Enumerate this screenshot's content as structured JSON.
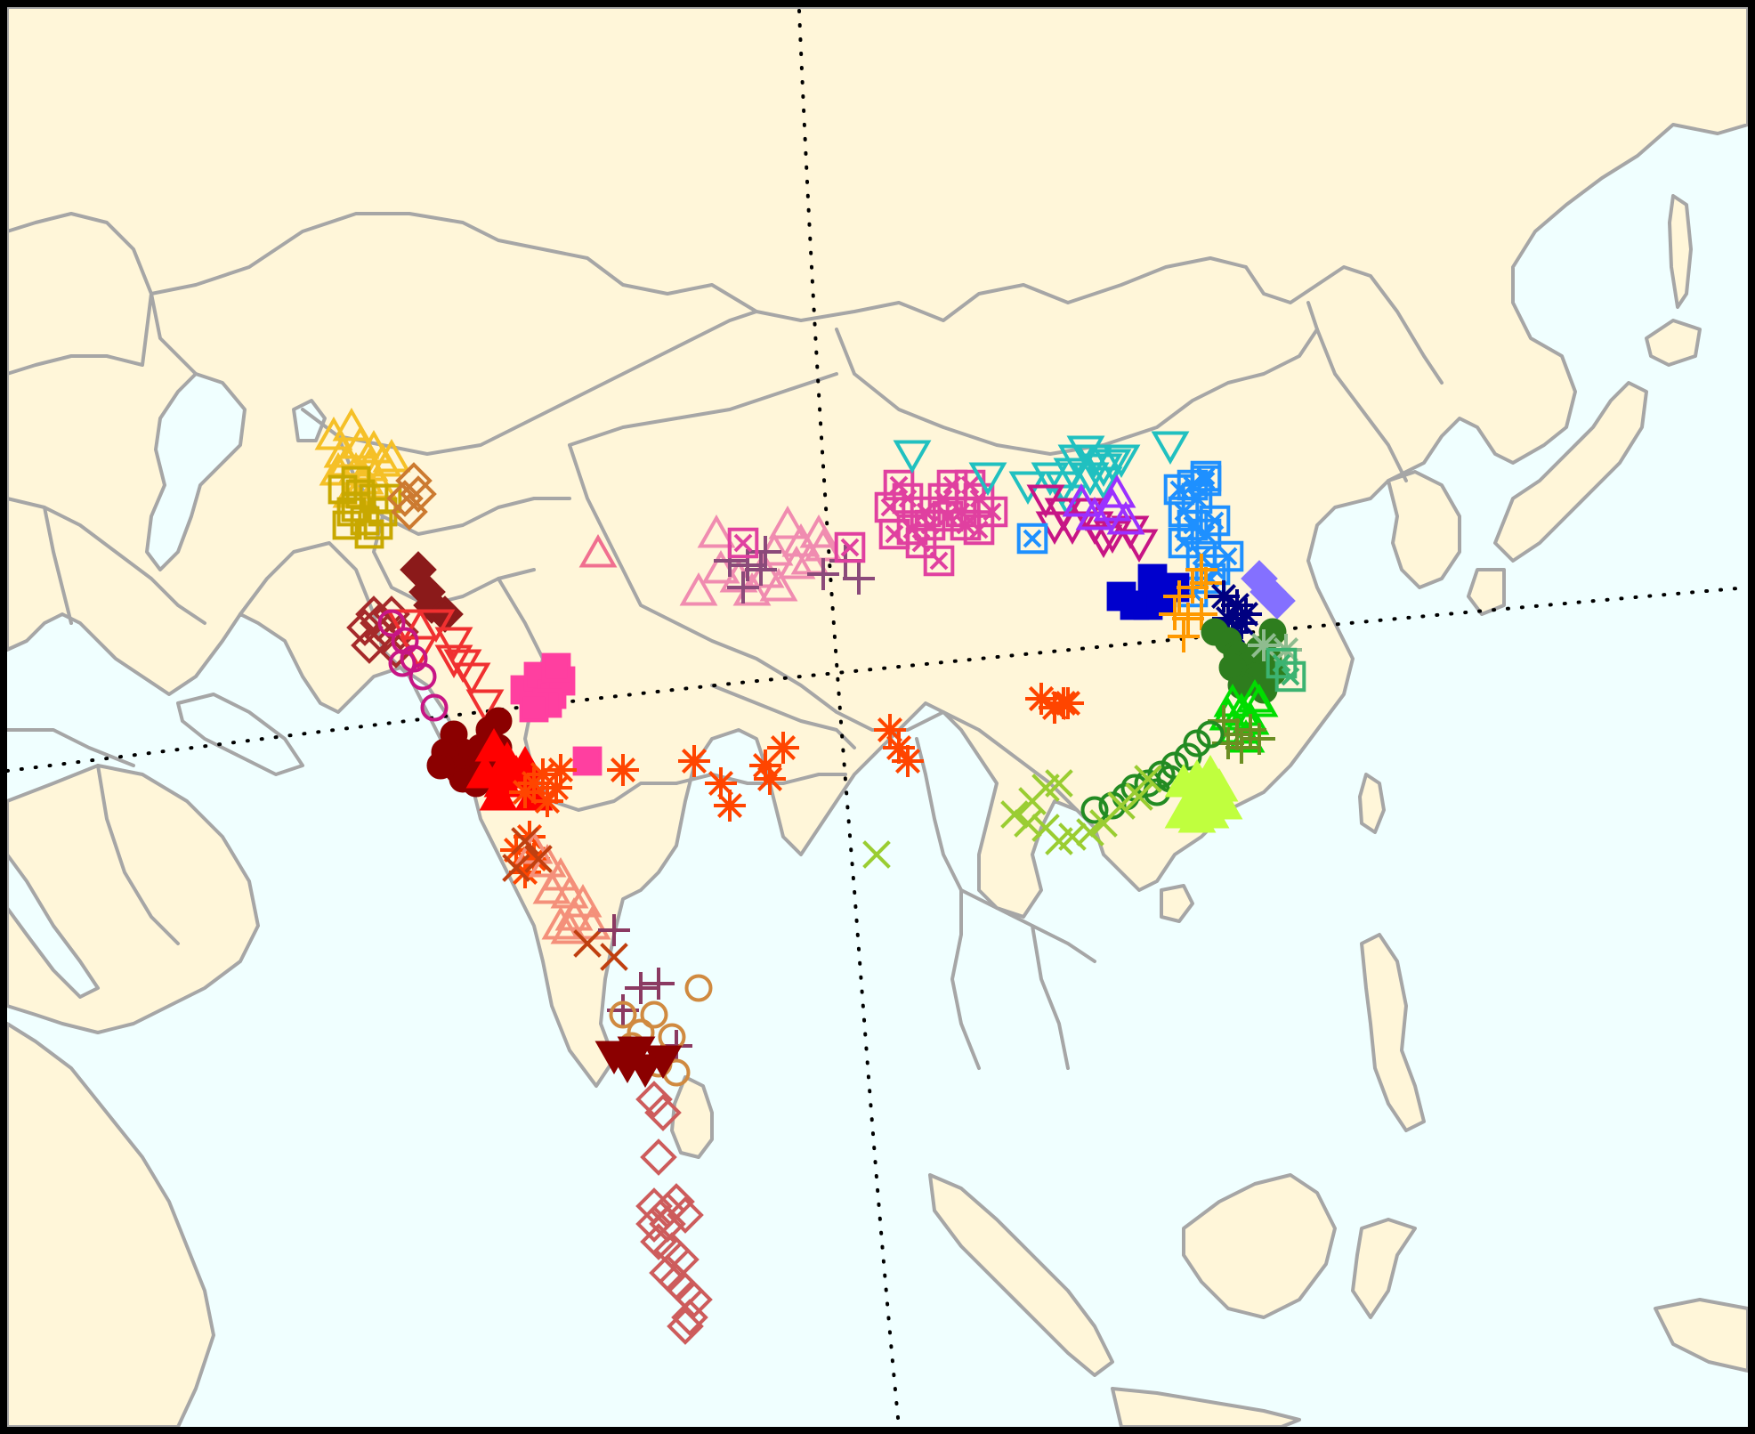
{
  "map": {
    "colors": {
      "land": "#fff6d9",
      "sea": "#f0ffff",
      "border": "#a6a6a6",
      "frame": "#000000",
      "grid": "#000000"
    },
    "marker_groups": [
      {
        "id": "central-asia-yellow-triangles",
        "shape": "triangle-up",
        "color": "#f5c027",
        "count": 14
      },
      {
        "id": "central-asia-olive-squares",
        "shape": "square",
        "color": "#c8a800",
        "count": 12
      },
      {
        "id": "central-asia-orange-diamonds",
        "shape": "diamond",
        "color": "#cc7a30",
        "count": 4
      },
      {
        "id": "pamir-pink-triangle",
        "shape": "triangle-up",
        "color": "#f07090",
        "count": 1
      },
      {
        "id": "afghan-maroon-diamonds",
        "shape": "diamond",
        "color": "#a52a2a",
        "count": 8
      },
      {
        "id": "afghan-darkred-filled-diamonds",
        "shape": "diamond-filled",
        "color": "#8b1a1a",
        "count": 4
      },
      {
        "id": "afghan-red-down-triangles",
        "shape": "triangle-down",
        "color": "#f03030",
        "count": 8
      },
      {
        "id": "afghan-magenta-circles",
        "shape": "circle",
        "color": "#c71585",
        "count": 6
      },
      {
        "id": "indus-darkred-dots",
        "shape": "circle-filled",
        "color": "#8b0000",
        "count": 14
      },
      {
        "id": "indus-red-filled-triangles",
        "shape": "triangle-filled",
        "color": "#ff0000",
        "count": 8
      },
      {
        "id": "punjab-hotpink-squares",
        "shape": "square-filled",
        "color": "#ff3fa0",
        "count": 8
      },
      {
        "id": "north-india-orange-asterisks",
        "shape": "asterisk",
        "color": "#ff4500",
        "count": 22
      },
      {
        "id": "west-coast-salmon-triangles",
        "shape": "triangle-up",
        "color": "#f4907a",
        "count": 10
      },
      {
        "id": "west-coast-brown-crosses",
        "shape": "x-mark",
        "color": "#c04010",
        "count": 5
      },
      {
        "id": "south-india-purple-plus",
        "shape": "plus",
        "color": "#8b3a62",
        "count": 5
      },
      {
        "id": "south-india-tan-circles",
        "shape": "circle",
        "color": "#d08a40",
        "count": 8
      },
      {
        "id": "south-india-darkred-down-triangles",
        "shape": "triangle-down-filled",
        "color": "#8b0000",
        "count": 5
      },
      {
        "id": "maldives-rose-diamonds",
        "shape": "diamond",
        "color": "#cd5c5c",
        "count": 18
      },
      {
        "id": "tibet-pink-triangles",
        "shape": "triangle-up",
        "color": "#f08cb0",
        "count": 14
      },
      {
        "id": "tibet-plum-plus",
        "shape": "plus",
        "color": "#8b4a7a",
        "count": 8
      },
      {
        "id": "tibet-magenta-boxed-x",
        "shape": "boxed-x",
        "color": "#e040a0",
        "count": 20
      },
      {
        "id": "qinghai-cyan-down-triangles",
        "shape": "triangle-down",
        "color": "#20c0c0",
        "count": 16
      },
      {
        "id": "gansu-magenta-down-triangles",
        "shape": "triangle-down",
        "color": "#c71585",
        "count": 10
      },
      {
        "id": "gansu-purple-up-triangles",
        "shape": "triangle-up",
        "color": "#9b30ff",
        "count": 5
      },
      {
        "id": "north-china-skyblue-boxed",
        "shape": "boxed-x",
        "color": "#1e90ff",
        "count": 16
      },
      {
        "id": "north-china-blue-squares",
        "shape": "square-filled",
        "color": "#0000cd",
        "count": 6
      },
      {
        "id": "north-china-orange-plus",
        "shape": "plus",
        "color": "#ff9900",
        "count": 8
      },
      {
        "id": "north-china-navy-asterisks",
        "shape": "asterisk",
        "color": "#000080",
        "count": 6
      },
      {
        "id": "north-china-lavender-diamonds",
        "shape": "diamond-filled",
        "color": "#8470ff",
        "count": 3
      },
      {
        "id": "central-china-darkgreen-circles",
        "shape": "circle-filled",
        "color": "#2e7d1e",
        "count": 12
      },
      {
        "id": "central-china-green-triangles",
        "shape": "triangle-up",
        "color": "#00dd00",
        "count": 8
      },
      {
        "id": "central-china-sage-asterisk",
        "shape": "asterisk",
        "color": "#8fbc8f",
        "count": 2
      },
      {
        "id": "central-china-seagreen-boxes",
        "shape": "boxed-x",
        "color": "#3cb371",
        "count": 2
      },
      {
        "id": "central-china-olive-plus",
        "shape": "plus",
        "color": "#6b8e23",
        "count": 6
      },
      {
        "id": "south-china-green-rings",
        "shape": "circle",
        "color": "#228b22",
        "count": 12
      },
      {
        "id": "south-china-yellowgreen-x",
        "shape": "x-mark",
        "color": "#9acd32",
        "count": 14
      },
      {
        "id": "south-china-lime-trees",
        "shape": "triangle-filled",
        "color": "#c0ff3e",
        "count": 10
      },
      {
        "id": "sichuan-orange-asterisks",
        "shape": "asterisk",
        "color": "#ff4500",
        "count": 3
      }
    ]
  }
}
